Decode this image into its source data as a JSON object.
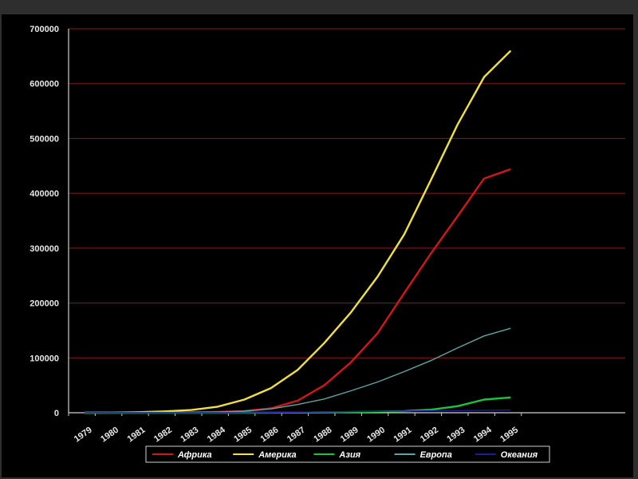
{
  "chart_data": {
    "type": "line",
    "title": "",
    "xlabel": "",
    "ylabel": "",
    "x": [
      "1979",
      "1980",
      "1981",
      "1982",
      "1983",
      "1984",
      "1985",
      "1986",
      "1987",
      "1988",
      "1989",
      "1990",
      "1991",
      "1992",
      "1993",
      "1994",
      "1995"
    ],
    "ylim": [
      0,
      700000
    ],
    "yticks": [
      "0",
      "100000",
      "200000",
      "300000",
      "400000",
      "500000",
      "600000",
      "700000"
    ],
    "grid": true,
    "legend_position": "bottom",
    "series": [
      {
        "name": "Африка",
        "color": "#d01818",
        "values": [
          0,
          0,
          0,
          300,
          800,
          1500,
          3000,
          8000,
          22000,
          50000,
          92000,
          145000,
          218000,
          290000,
          358000,
          427000,
          444000
        ]
      },
      {
        "name": "Америка",
        "color": "#f0e040",
        "values": [
          0,
          300,
          1000,
          2500,
          5000,
          11000,
          24000,
          45000,
          78000,
          127000,
          183000,
          248000,
          325000,
          424000,
          525000,
          612000,
          660000
        ]
      },
      {
        "name": "Азия",
        "color": "#19c53a",
        "values": [
          0,
          0,
          0,
          0,
          0,
          0,
          0,
          100,
          300,
          700,
          1300,
          2000,
          3000,
          5500,
          12000,
          24000,
          28000
        ]
      },
      {
        "name": "Европа",
        "color": "#5fa3a3",
        "values": [
          0,
          0,
          100,
          300,
          700,
          1500,
          3000,
          7000,
          15000,
          25000,
          40000,
          56000,
          75000,
          95000,
          118000,
          140000,
          154000
        ]
      },
      {
        "name": "Океания",
        "color": "#1c1c9a",
        "values": [
          0,
          0,
          0,
          0,
          0,
          50,
          200,
          500,
          1000,
          1500,
          2000,
          2500,
          3000,
          3500,
          4000,
          4500,
          5000
        ]
      }
    ]
  }
}
